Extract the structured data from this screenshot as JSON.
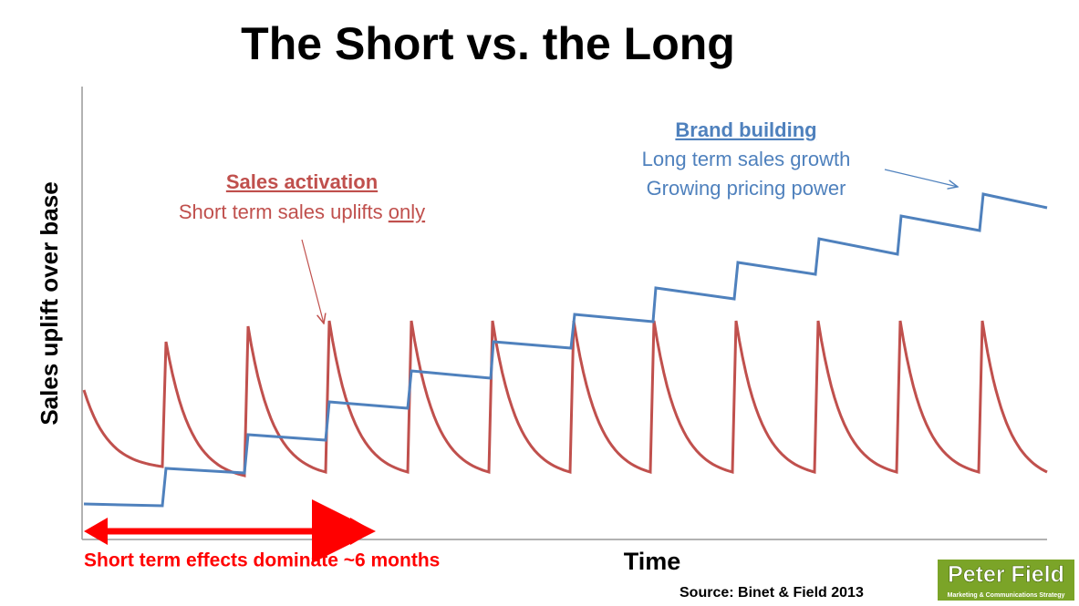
{
  "header": {
    "title": "The Short vs. the Long"
  },
  "axes": {
    "y_label": "Sales uplift over base",
    "x_label": "Time"
  },
  "annotations": {
    "sales_activation": {
      "title": "Sales activation",
      "text": "Short term sales uplifts",
      "emphasis": "only"
    },
    "brand_building": {
      "title": "Brand building",
      "lines": [
        "Long term sales growth",
        "Growing pricing power"
      ]
    },
    "short_term_span": "Short term effects dominate ~6 months"
  },
  "footer": {
    "source": "Source: Binet & Field 2013",
    "logo": {
      "name": "Peter Field",
      "tagline": "Marketing & Communications Strategy"
    }
  }
}
